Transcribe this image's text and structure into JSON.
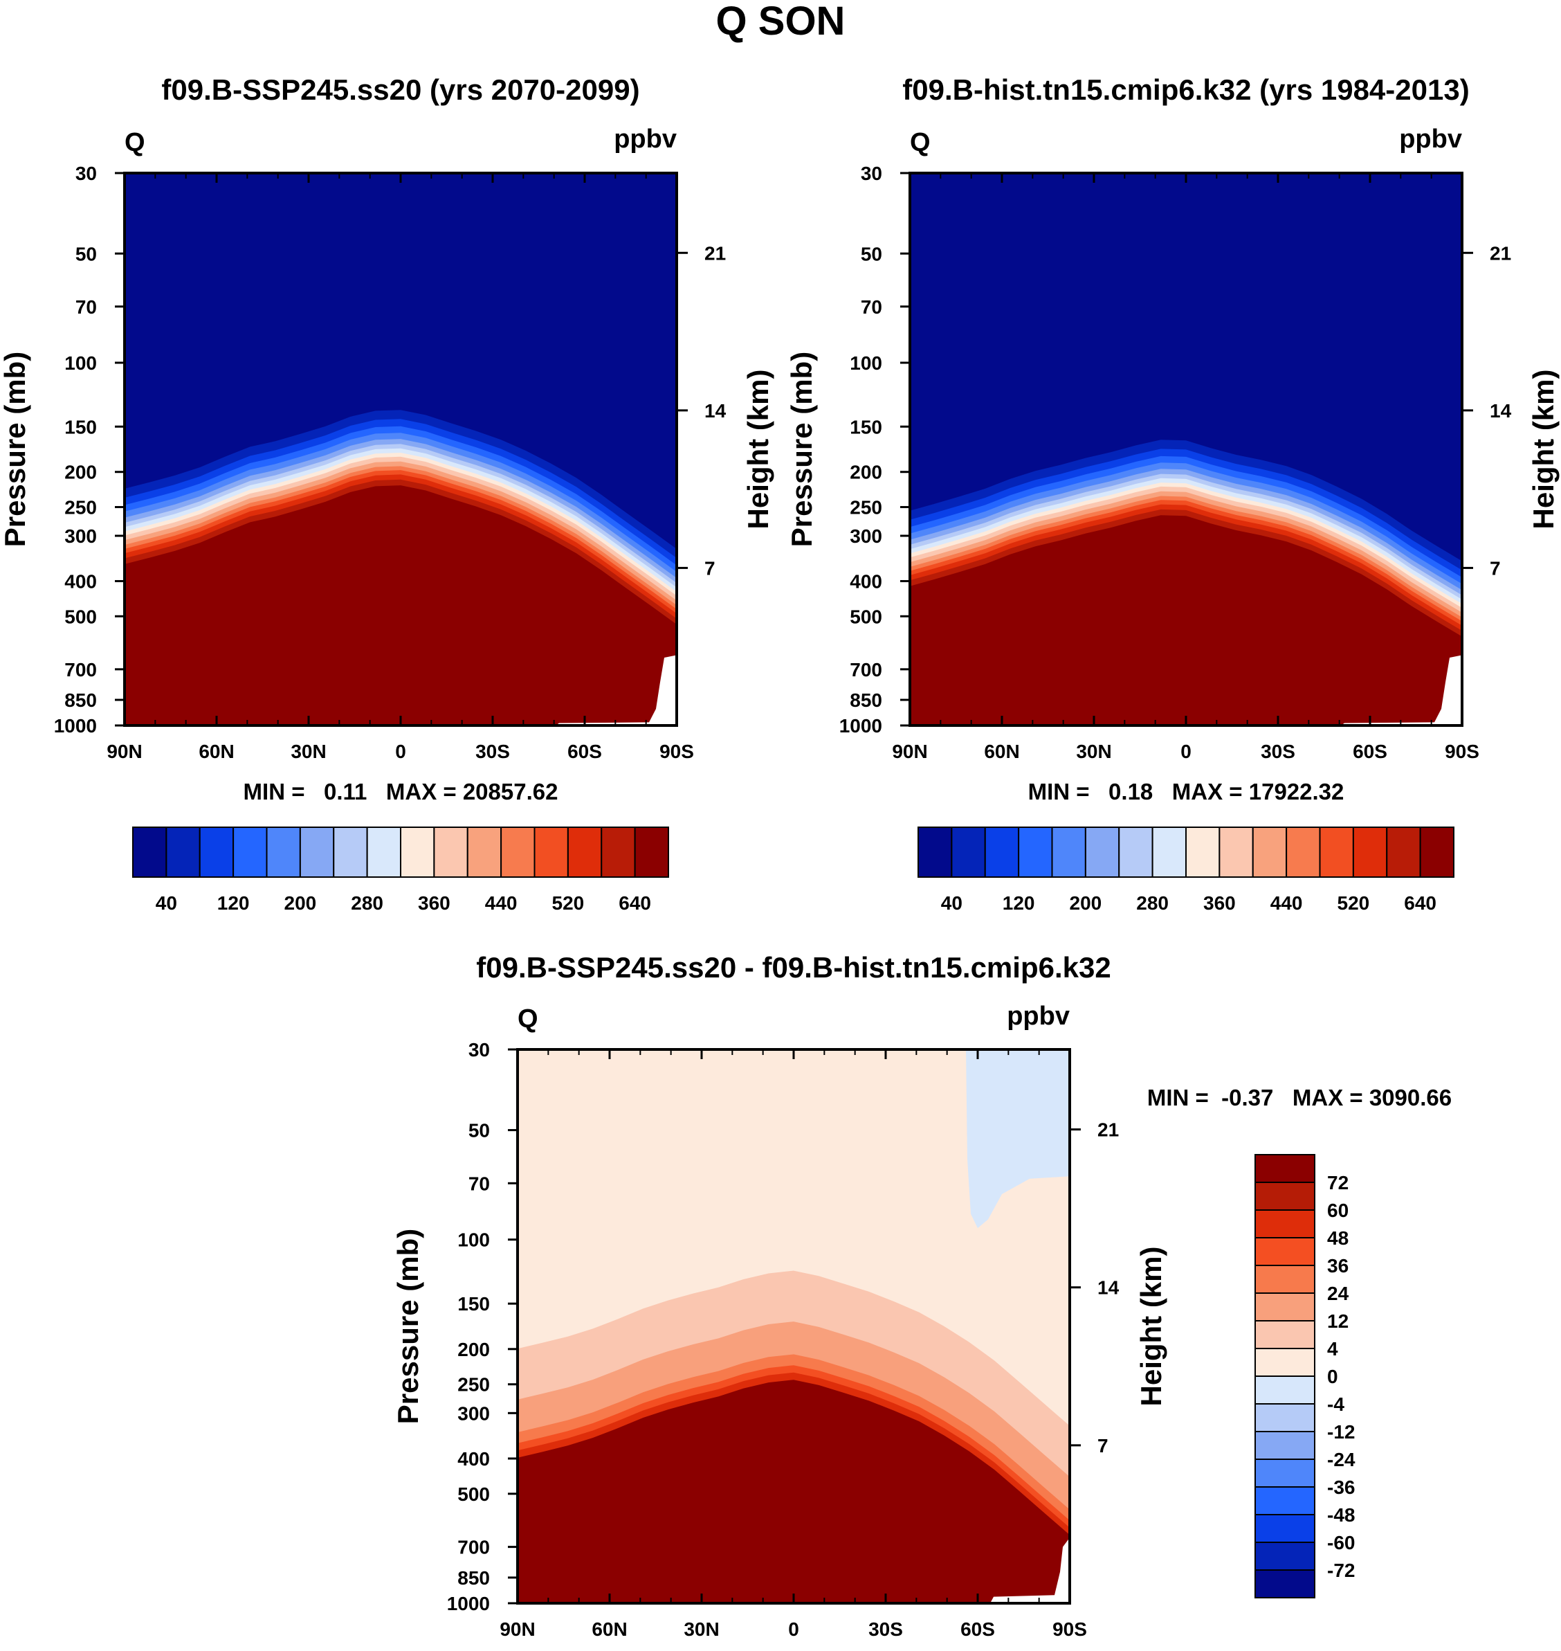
{
  "figure": {
    "title": "Q SON"
  },
  "panel_a": {
    "title": "f09.B-SSP245.ss20 (yrs 2070-2099)",
    "left_label": "Q",
    "right_label": "ppbv",
    "minmax": "MIN =   0.11   MAX = 20857.62",
    "ylabel": "Pressure (mb)",
    "ylabel_right": "Height (km)",
    "tropo_top": [
      300,
      288,
      276,
      262,
      245,
      230,
      222,
      212,
      202,
      190,
      183,
      182,
      188,
      198,
      208,
      220,
      236,
      256,
      280,
      312,
      350,
      392,
      440
    ]
  },
  "panel_b": {
    "title": "f09.B-hist.tn15.cmip6.k32 (yrs 1984-2013)",
    "left_label": "Q",
    "right_label": "ppbv",
    "minmax": "MIN =   0.18   MAX = 17922.32",
    "ylabel": "Pressure (mb)",
    "ylabel_right": "Height (km)",
    "tropo_top": [
      345,
      330,
      315,
      300,
      282,
      268,
      258,
      247,
      238,
      228,
      220,
      221,
      232,
      242,
      250,
      260,
      275,
      296,
      320,
      352,
      392,
      432,
      475
    ]
  },
  "panel_c": {
    "title": "f09.B-SSP245.ss20 - f09.B-hist.tn15.cmip6.k32",
    "left_label": "Q",
    "right_label": "ppbv",
    "minmax": "MIN =  -0.37   MAX = 3090.66",
    "ylabel": "Pressure (mb)",
    "ylabel_right": "Height (km)",
    "tropo_top": [
      380,
      366,
      352,
      335,
      315,
      295,
      280,
      268,
      258,
      245,
      236,
      232,
      240,
      252,
      265,
      282,
      302,
      330,
      365,
      410,
      470,
      540,
      620
    ]
  },
  "chart_data": [
    {
      "type": "heatmap",
      "title": "f09.B-SSP245.ss20 (yrs 2070-2099)",
      "variable": "Q",
      "units": "ppbv",
      "xlabel": "",
      "ylabel": "Pressure (mb)",
      "ylabel_right": "Height (km)",
      "xticks": [
        "90N",
        "60N",
        "30N",
        "0",
        "30S",
        "60S",
        "90S"
      ],
      "yticks": [
        30,
        50,
        70,
        100,
        150,
        200,
        250,
        300,
        400,
        500,
        700,
        850,
        1000
      ],
      "yticks_right": [
        7,
        14,
        21
      ],
      "ylim": [
        1000,
        30
      ],
      "yscale": "log",
      "min": 0.11,
      "max": 20857.62,
      "colorbar_levels": [
        40,
        120,
        200,
        280,
        360,
        440,
        520,
        640
      ]
    },
    {
      "type": "heatmap",
      "title": "f09.B-hist.tn15.cmip6.k32 (yrs 1984-2013)",
      "variable": "Q",
      "units": "ppbv",
      "xlabel": "",
      "ylabel": "Pressure (mb)",
      "ylabel_right": "Height (km)",
      "xticks": [
        "90N",
        "60N",
        "30N",
        "0",
        "30S",
        "60S",
        "90S"
      ],
      "yticks": [
        30,
        50,
        70,
        100,
        150,
        200,
        250,
        300,
        400,
        500,
        700,
        850,
        1000
      ],
      "yticks_right": [
        7,
        14,
        21
      ],
      "ylim": [
        1000,
        30
      ],
      "yscale": "log",
      "min": 0.18,
      "max": 17922.32,
      "colorbar_levels": [
        40,
        120,
        200,
        280,
        360,
        440,
        520,
        640
      ]
    },
    {
      "type": "heatmap",
      "title": "f09.B-SSP245.ss20 - f09.B-hist.tn15.cmip6.k32",
      "variable": "Q",
      "units": "ppbv",
      "xlabel": "",
      "ylabel": "Pressure (mb)",
      "ylabel_right": "Height (km)",
      "xticks": [
        "90N",
        "60N",
        "30N",
        "0",
        "30S",
        "60S",
        "90S"
      ],
      "yticks": [
        30,
        50,
        70,
        100,
        150,
        200,
        250,
        300,
        400,
        500,
        700,
        850,
        1000
      ],
      "yticks_right": [
        7,
        14,
        21
      ],
      "ylim": [
        1000,
        30
      ],
      "yscale": "log",
      "min": -0.37,
      "max": 3090.66,
      "colorbar_levels": [
        72,
        60,
        48,
        36,
        24,
        12,
        4,
        0,
        -4,
        -12,
        -24,
        -36,
        -48,
        -60,
        -72
      ]
    }
  ],
  "colors": {
    "abs_palette": [
      "#020a8c",
      "#0424b8",
      "#0a40e8",
      "#2466ff",
      "#4f86fa",
      "#86a8f4",
      "#b6cbf7",
      "#d9e8fb",
      "#fdeadb",
      "#fbc7b0",
      "#f8a27d",
      "#f77b4e",
      "#f24f22",
      "#df2d0a",
      "#b81c07",
      "#8b0000"
    ],
    "diff_palette": [
      "#8b0000",
      "#b51c06",
      "#de2d0a",
      "#f44f22",
      "#f77a4c",
      "#f8a07c",
      "#fac6b0",
      "#fdeadc",
      "#d7e7fb",
      "#b5cbf7",
      "#86a8f4",
      "#4f86fa",
      "#2466ff",
      "#0a40e8",
      "#0424b8",
      "#020a8c"
    ]
  }
}
